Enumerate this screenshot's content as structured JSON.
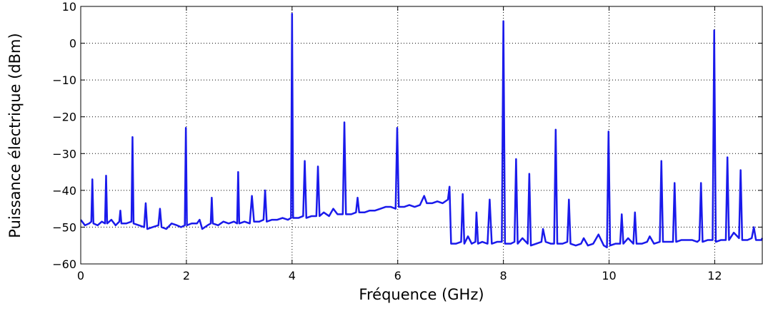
{
  "chart_data": {
    "type": "line",
    "xlabel": "Fréquence (GHz)",
    "ylabel": "Puissance électrique (dBm)",
    "xlim": [
      0,
      12.9
    ],
    "ylim": [
      -60,
      10
    ],
    "xticks": [
      0,
      2,
      4,
      6,
      8,
      10,
      12
    ],
    "yticks": [
      {
        "value": -60,
        "label": "−60"
      },
      {
        "value": -50,
        "label": "−50"
      },
      {
        "value": -40,
        "label": "−40"
      },
      {
        "value": -30,
        "label": "−30"
      },
      {
        "value": -20,
        "label": "−20"
      },
      {
        "value": -10,
        "label": "−10"
      },
      0,
      10
    ],
    "grid": true,
    "color": "#1a1aeb",
    "x": [
      0,
      0.08,
      0.16,
      0.2,
      0.22,
      0.24,
      0.32,
      0.4,
      0.46,
      0.48,
      0.5,
      0.58,
      0.66,
      0.73,
      0.75,
      0.77,
      0.86,
      0.96,
      0.98,
      1.0,
      1.1,
      1.2,
      1.23,
      1.26,
      1.36,
      1.47,
      1.5,
      1.53,
      1.62,
      1.72,
      1.82,
      1.9,
      1.97,
      1.99,
      2.01,
      2.1,
      2.2,
      2.25,
      2.3,
      2.4,
      2.46,
      2.48,
      2.5,
      2.6,
      2.7,
      2.8,
      2.9,
      2.96,
      2.98,
      3.0,
      3.1,
      3.2,
      3.24,
      3.28,
      3.38,
      3.46,
      3.49,
      3.52,
      3.62,
      3.72,
      3.82,
      3.92,
      3.98,
      4.0,
      4.02,
      4.12,
      4.21,
      4.24,
      4.27,
      4.37,
      4.46,
      4.49,
      4.52,
      4.6,
      4.7,
      4.78,
      4.86,
      4.96,
      4.99,
      5.02,
      5.12,
      5.21,
      5.24,
      5.27,
      5.37,
      5.47,
      5.57,
      5.67,
      5.77,
      5.87,
      5.96,
      5.99,
      6.02,
      6.12,
      6.22,
      6.32,
      6.42,
      6.5,
      6.55,
      6.65,
      6.75,
      6.85,
      6.95,
      6.98,
      7.01,
      7.1,
      7.2,
      7.23,
      7.26,
      7.33,
      7.4,
      7.47,
      7.49,
      7.52,
      7.6,
      7.7,
      7.74,
      7.78,
      7.88,
      7.97,
      8.0,
      8.03,
      8.14,
      8.21,
      8.24,
      8.27,
      8.36,
      8.46,
      8.49,
      8.52,
      8.62,
      8.72,
      8.75,
      8.8,
      8.9,
      8.96,
      8.99,
      9.02,
      9.12,
      9.21,
      9.24,
      9.27,
      9.37,
      9.47,
      9.52,
      9.6,
      9.7,
      9.8,
      9.9,
      9.96,
      9.99,
      10.02,
      10.12,
      10.21,
      10.24,
      10.27,
      10.36,
      10.46,
      10.49,
      10.52,
      10.62,
      10.72,
      10.77,
      10.85,
      10.96,
      10.99,
      11.02,
      11.12,
      11.21,
      11.24,
      11.27,
      11.37,
      11.47,
      11.57,
      11.67,
      11.71,
      11.74,
      11.77,
      11.87,
      11.96,
      11.99,
      12.02,
      12.12,
      12.21,
      12.24,
      12.27,
      12.36,
      12.46,
      12.49,
      12.52,
      12.62,
      12.7,
      12.74,
      12.78,
      12.88,
      12.9
    ],
    "values": [
      -48,
      -49.5,
      -49,
      -48.5,
      -37,
      -49,
      -49.5,
      -48.5,
      -49,
      -36,
      -49,
      -48,
      -49.5,
      -48.5,
      -45.5,
      -49,
      -49,
      -48.5,
      -25.5,
      -49,
      -49.5,
      -50,
      -43.5,
      -50.5,
      -50,
      -49.5,
      -45,
      -50,
      -50.5,
      -49,
      -49.5,
      -50,
      -49.5,
      -23,
      -49.5,
      -49,
      -49,
      -48,
      -50.5,
      -49.5,
      -49,
      -42,
      -49,
      -49.5,
      -48.5,
      -49,
      -48.5,
      -49,
      -35,
      -49,
      -48.5,
      -49,
      -41.5,
      -48.5,
      -48.5,
      -48,
      -40,
      -48.5,
      -48,
      -48,
      -47.5,
      -48,
      -47.5,
      8,
      -47.5,
      -47.5,
      -47,
      -32,
      -47.5,
      -47,
      -47,
      -33.5,
      -47,
      -46,
      -47,
      -45,
      -46.5,
      -46.5,
      -21.5,
      -46.5,
      -46.5,
      -46,
      -42,
      -46,
      -46,
      -45.5,
      -45.5,
      -45,
      -44.5,
      -44.5,
      -45,
      -23,
      -44.5,
      -44.5,
      -44,
      -44.5,
      -44,
      -41.5,
      -43.5,
      -43.5,
      -43,
      -43.5,
      -42.5,
      -39,
      -54.5,
      -54.5,
      -54,
      -41,
      -54.5,
      -52.5,
      -54.5,
      -54,
      -46,
      -54.5,
      -54,
      -54.5,
      -42.5,
      -54.5,
      -54,
      -54,
      6,
      -54.5,
      -54.5,
      -54,
      -31.5,
      -54.5,
      -53,
      -54.5,
      -35.5,
      -55,
      -54.5,
      -54,
      -50.5,
      -54,
      -54.5,
      -54.5,
      -23.5,
      -54.5,
      -54.5,
      -54,
      -42.5,
      -54.5,
      -55,
      -54.5,
      -53,
      -55,
      -54.5,
      -52,
      -55,
      -55.5,
      -24,
      -55,
      -54.5,
      -54.5,
      -46.5,
      -54.5,
      -53,
      -54.5,
      -46,
      -54.5,
      -54.5,
      -54,
      -52.5,
      -54.5,
      -54,
      -32,
      -54,
      -54,
      -54,
      -38,
      -54,
      -53.5,
      -53.5,
      -53.5,
      -54,
      -53.5,
      -38,
      -54,
      -53.5,
      -53.5,
      3.5,
      -54,
      -53.5,
      -53.5,
      -31,
      -53.5,
      -51.5,
      -53,
      -34.5,
      -53.5,
      -53.5,
      -53,
      -50,
      -53.5,
      -53.5,
      -53
    ]
  }
}
